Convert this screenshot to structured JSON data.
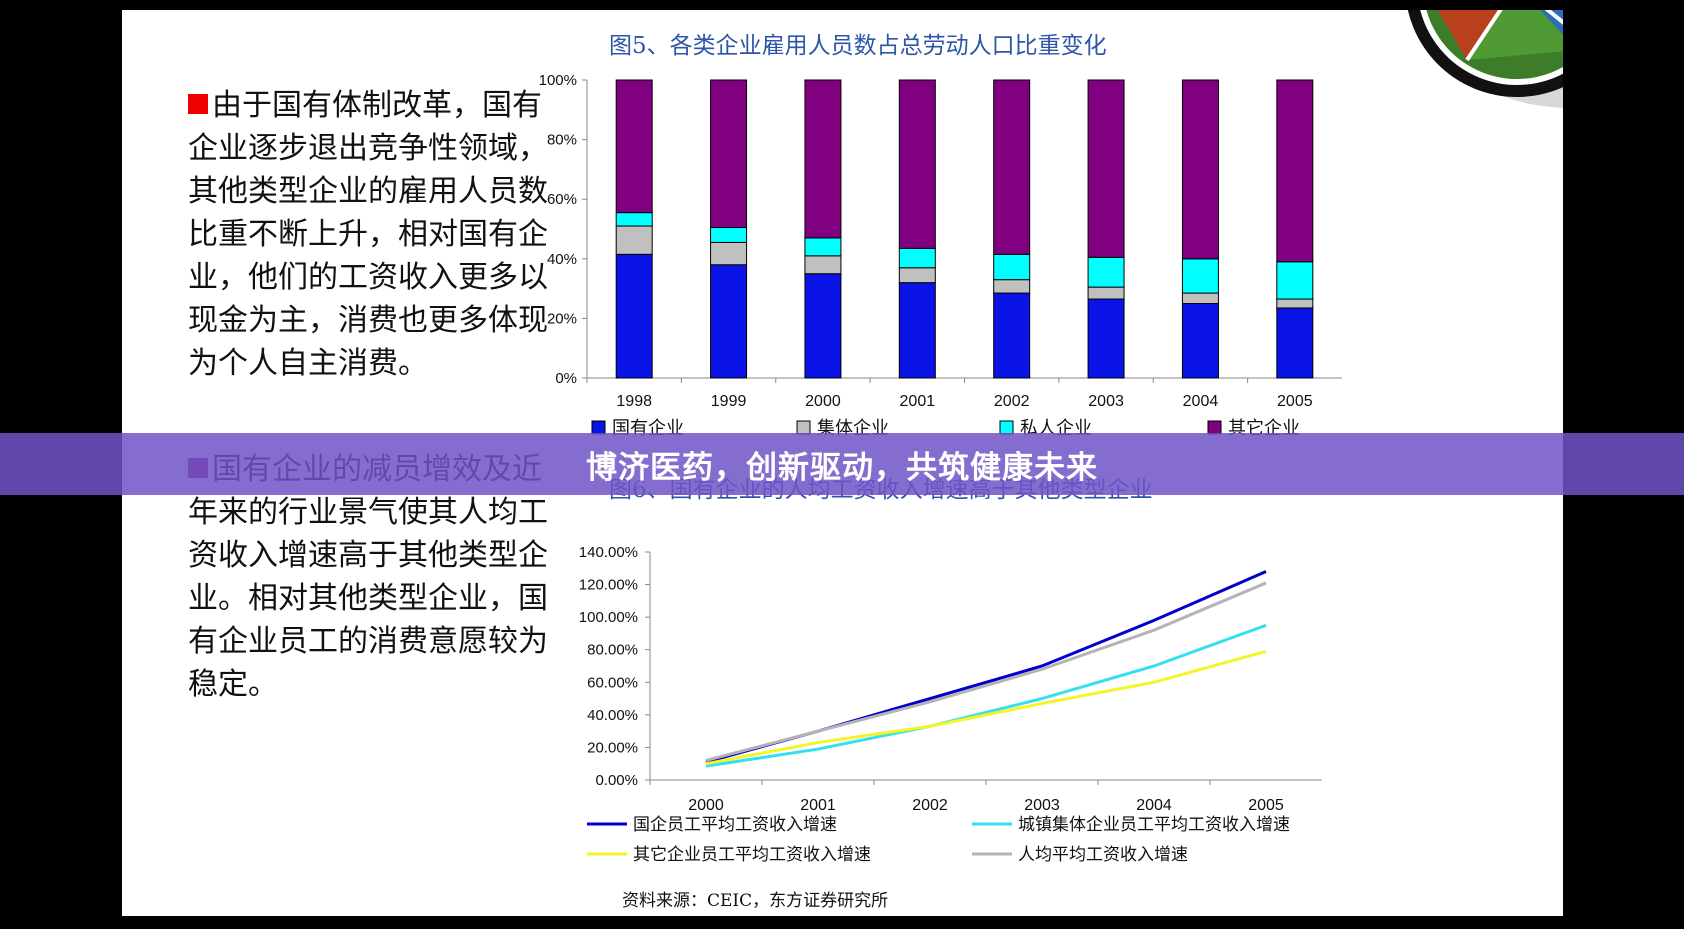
{
  "texts": {
    "para1": "由于国有体制改革，国有企业逐步退出竞争性领域，其他类型企业的雇用人员数比重不断上升，相对国有企业，他们的工资收入更多以现金为主，消费也更多体现为个人自主消费。",
    "para2": "国有企业的减员增效及近年来的行业景气使其人均工资收入增速高于其他类型企业。相对其他类型企业，国有企业员工的消费意愿较为稳定。",
    "source": "资料来源：CEIC，东方证券研究所",
    "banner": "博济医药，创新驱动，共筑健康未来"
  },
  "colors": {
    "para1_mark": "#ee0000",
    "para2_mark": "#8b1a6b",
    "chart_title": "#2e56a6",
    "banner_bg": "#7054c8"
  },
  "chart_data": [
    {
      "type": "bar",
      "stacked": true,
      "percent": true,
      "title": "图5、各类企业雇用人员数占总劳动人口比重变化",
      "categories": [
        "1998",
        "1999",
        "2000",
        "2001",
        "2002",
        "2003",
        "2004",
        "2005"
      ],
      "ylim": [
        0,
        100
      ],
      "yticks": [
        "0%",
        "20%",
        "40%",
        "60%",
        "80%",
        "100%"
      ],
      "legend_position": "bottom",
      "series": [
        {
          "name": "国有企业",
          "color": "#0a14e6",
          "values": [
            41.5,
            38,
            35,
            32,
            28.5,
            26.5,
            25,
            23.5
          ]
        },
        {
          "name": "集体企业",
          "color": "#c0c0c0",
          "values": [
            9.5,
            7.5,
            6,
            5,
            4.5,
            4,
            3.5,
            3
          ]
        },
        {
          "name": "私人企业",
          "color": "#00ffff",
          "values": [
            4.5,
            5,
            6,
            6.5,
            8.5,
            10,
            11.5,
            12.5
          ]
        },
        {
          "name": "其它企业",
          "color": "#800080",
          "values": [
            44.5,
            49.5,
            53,
            56.5,
            58.5,
            59.5,
            60,
            61
          ]
        }
      ]
    },
    {
      "type": "line",
      "title": "图6、国有企业的人均工资收入增速高于其他类型企业",
      "x": [
        "2000",
        "2001",
        "2002",
        "2003",
        "2004",
        "2005"
      ],
      "ylim": [
        0,
        140
      ],
      "yticks": [
        "0.00%",
        "20.00%",
        "40.00%",
        "60.00%",
        "80.00%",
        "100.00%",
        "120.00%",
        "140.00%"
      ],
      "legend_position": "bottom",
      "series": [
        {
          "name": "国企员工平均工资收入增速",
          "color": "#0000cc",
          "values": [
            11,
            30,
            50,
            70,
            98,
            128
          ]
        },
        {
          "name": "城镇集体企业员工平均工资收入增速",
          "color": "#33e0f0",
          "values": [
            8.5,
            19,
            33,
            50,
            70,
            95
          ]
        },
        {
          "name": "其它企业员工平均工资收入增速",
          "color": "#f4f426",
          "values": [
            10,
            23,
            33,
            47,
            60,
            79
          ]
        },
        {
          "name": "人均平均工资收入增速",
          "color": "#b4b4b4",
          "values": [
            12,
            30,
            48,
            68,
            92,
            121
          ]
        }
      ]
    }
  ]
}
